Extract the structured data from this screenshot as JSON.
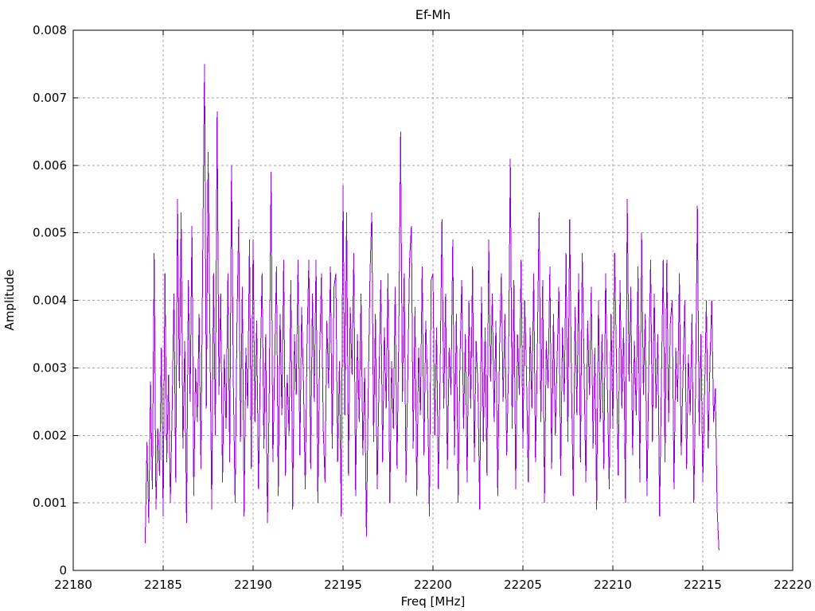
{
  "chart_data": {
    "type": "line",
    "title": "Ef-Mh",
    "xlabel": "Freq [MHz]",
    "ylabel": "Amplitude",
    "xlim": [
      22180,
      22220
    ],
    "ylim": [
      0,
      0.008
    ],
    "x_tick_values": [
      22180,
      22185,
      22190,
      22195,
      22200,
      22205,
      22210,
      22215,
      22220
    ],
    "x_tick_labels": [
      "22180",
      "22185",
      "22190",
      "22195",
      "22200",
      "22205",
      "22210",
      "22215",
      "22220"
    ],
    "y_tick_values": [
      0,
      0.001,
      0.002,
      0.003,
      0.004,
      0.005,
      0.006,
      0.007,
      0.008
    ],
    "y_tick_labels": [
      "0",
      "0.001",
      "0.002",
      "0.003",
      "0.004",
      "0.005",
      "0.006",
      "0.007",
      "0.008"
    ],
    "grid": true,
    "grid_style": "dashed",
    "legend": "none",
    "colors": {
      "series": "#9400d3",
      "grid": "#a6a6a6",
      "axis": "#000000",
      "background": "#ffffff"
    },
    "series": [
      {
        "name": "Ef-Mh",
        "color": "#9400d3",
        "x_start": 22184.0,
        "x_step": 0.1,
        "values": [
          0.0004,
          0.0019,
          0.0007,
          0.0028,
          0.0012,
          0.0047,
          0.0009,
          0.0021,
          0.0014,
          0.0033,
          0.0008,
          0.0044,
          0.0016,
          0.0029,
          0.001,
          0.0024,
          0.0041,
          0.0013,
          0.0055,
          0.0027,
          0.0053,
          0.0018,
          0.0034,
          0.0007,
          0.0043,
          0.0025,
          0.0051,
          0.0011,
          0.003,
          0.0022,
          0.0038,
          0.0015,
          0.0047,
          0.0075,
          0.0024,
          0.0062,
          0.0035,
          0.0009,
          0.0044,
          0.002,
          0.0068,
          0.0026,
          0.0041,
          0.0013,
          0.0032,
          0.0021,
          0.0044,
          0.0016,
          0.006,
          0.0028,
          0.001,
          0.0036,
          0.0052,
          0.0019,
          0.0042,
          0.0008,
          0.0033,
          0.0024,
          0.0049,
          0.0015,
          0.0049,
          0.0022,
          0.0037,
          0.0012,
          0.003,
          0.0044,
          0.0018,
          0.0035,
          0.0007,
          0.0027,
          0.0059,
          0.0016,
          0.0031,
          0.0045,
          0.0011,
          0.0038,
          0.0023,
          0.0046,
          0.0014,
          0.0029,
          0.002,
          0.0043,
          0.0009,
          0.0035,
          0.0026,
          0.0046,
          0.0017,
          0.0039,
          0.0028,
          0.0012,
          0.0034,
          0.0046,
          0.0015,
          0.0041,
          0.0025,
          0.0046,
          0.001,
          0.0032,
          0.0044,
          0.0021,
          0.0013,
          0.0037,
          0.0027,
          0.0045,
          0.0018,
          0.0042,
          0.0044,
          0.0016,
          0.0031,
          0.0008,
          0.0057,
          0.0023,
          0.0053,
          0.0014,
          0.0039,
          0.0029,
          0.0047,
          0.0011,
          0.0035,
          0.0022,
          0.0041,
          0.0017,
          0.003,
          0.0005,
          0.0026,
          0.0044,
          0.0053,
          0.0019,
          0.0038,
          0.0012,
          0.0028,
          0.0043,
          0.0016,
          0.0036,
          0.0024,
          0.0044,
          0.001,
          0.0031,
          0.0021,
          0.0042,
          0.0015,
          0.0035,
          0.0065,
          0.0025,
          0.0044,
          0.0013,
          0.0029,
          0.0046,
          0.0051,
          0.0018,
          0.0039,
          0.0011,
          0.0033,
          0.0023,
          0.0045,
          0.0017,
          0.0037,
          0.0027,
          0.0008,
          0.0043,
          0.0044,
          0.002,
          0.0036,
          0.0012,
          0.003,
          0.0052,
          0.0024,
          0.0041,
          0.0015,
          0.0033,
          0.0026,
          0.0049,
          0.0017,
          0.0038,
          0.001,
          0.0031,
          0.0043,
          0.0021,
          0.0035,
          0.0013,
          0.004,
          0.0024,
          0.0045,
          0.0016,
          0.0034,
          0.0027,
          0.0009,
          0.0042,
          0.0019,
          0.0036,
          0.0014,
          0.0049,
          0.0028,
          0.0041,
          0.0022,
          0.0037,
          0.0011,
          0.0033,
          0.0044,
          0.0025,
          0.0038,
          0.0017,
          0.003,
          0.0061,
          0.0021,
          0.0043,
          0.0012,
          0.0035,
          0.0026,
          0.0046,
          0.0018,
          0.004,
          0.0029,
          0.0013,
          0.0036,
          0.0024,
          0.0044,
          0.0016,
          0.0032,
          0.0053,
          0.0022,
          0.0043,
          0.001,
          0.0034,
          0.0027,
          0.0045,
          0.0015,
          0.0038,
          0.002,
          0.0031,
          0.0042,
          0.0014,
          0.0036,
          0.0025,
          0.0047,
          0.0019,
          0.0052,
          0.0028,
          0.0011,
          0.0039,
          0.0023,
          0.0044,
          0.0016,
          0.0047,
          0.003,
          0.0013,
          0.0037,
          0.0026,
          0.0042,
          0.0018,
          0.0033,
          0.0009,
          0.004,
          0.0022,
          0.0035,
          0.0015,
          0.0044,
          0.0027,
          0.0012,
          0.0038,
          0.0021,
          0.0047,
          0.0031,
          0.0014,
          0.0043,
          0.0024,
          0.0036,
          0.001,
          0.0055,
          0.0028,
          0.0042,
          0.0017,
          0.0034,
          0.0023,
          0.0045,
          0.0013,
          0.005,
          0.0026,
          0.0038,
          0.0011,
          0.003,
          0.0046,
          0.0019,
          0.0041,
          0.0024,
          0.0035,
          0.0008,
          0.0028,
          0.0046,
          0.0016,
          0.0046,
          0.0022,
          0.0037,
          0.004,
          0.0012,
          0.0033,
          0.0025,
          0.0044,
          0.0017,
          0.0029,
          0.004,
          0.0015,
          0.0032,
          0.0023,
          0.0038,
          0.001,
          0.0027,
          0.0054,
          0.002,
          0.0035,
          0.0013,
          0.0026,
          0.004,
          0.0018,
          0.0031,
          0.004,
          0.0022,
          0.0027,
          0.0009,
          0.0003
        ]
      }
    ]
  }
}
